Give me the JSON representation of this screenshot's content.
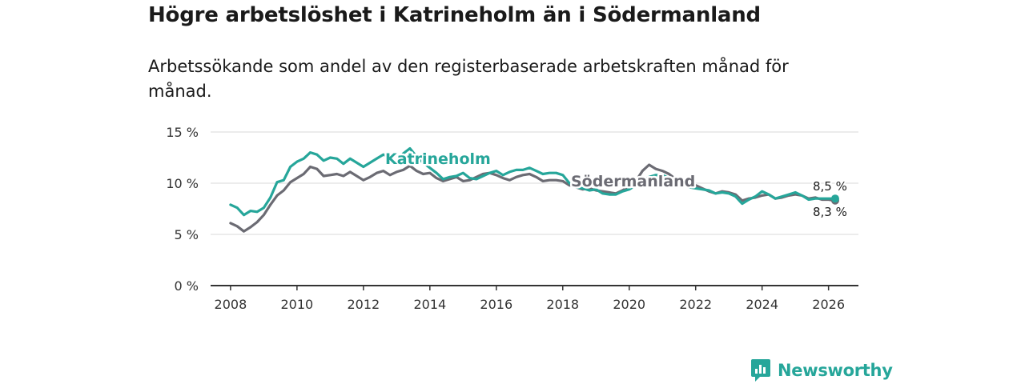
{
  "header": {
    "title": "Högre arbetslöshet i Katrineholm än i Södermanland",
    "subtitle": "Arbetssökande som andel av den registerbaserade arbetskraften månad för månad."
  },
  "brand": {
    "name": "Newsworthy",
    "icon": "newsworthy-logo-icon",
    "color": "#26a69a"
  },
  "chart_data": {
    "type": "line",
    "title": "Högre arbetslöshet i Katrineholm än i Södermanland",
    "subtitle": "Arbetssökande som andel av den registerbaserade arbetskraften månad för månad.",
    "xlabel": "",
    "ylabel": "",
    "xlim": [
      2007.4,
      2026.9
    ],
    "ylim": [
      0,
      15
    ],
    "x_ticks": [
      2008,
      2010,
      2012,
      2014,
      2016,
      2018,
      2020,
      2022,
      2024,
      2026
    ],
    "x_tick_labels": [
      "2008",
      "2010",
      "2012",
      "2014",
      "2016",
      "2018",
      "2020",
      "2022",
      "2024",
      "2026"
    ],
    "y_ticks": [
      0,
      5,
      10,
      15
    ],
    "y_tick_labels": [
      "0 %",
      "5 %",
      "10 %",
      "15 %"
    ],
    "grid": "horizontal",
    "series": [
      {
        "name": "Södermanland",
        "label": "Södermanland",
        "color": "#6b6b73",
        "end_label": "8,3 %",
        "points": [
          [
            2008.0,
            6.1
          ],
          [
            2008.2,
            5.8
          ],
          [
            2008.4,
            5.3
          ],
          [
            2008.6,
            5.7
          ],
          [
            2008.8,
            6.2
          ],
          [
            2009.0,
            6.9
          ],
          [
            2009.2,
            7.9
          ],
          [
            2009.4,
            8.8
          ],
          [
            2009.6,
            9.3
          ],
          [
            2009.8,
            10.1
          ],
          [
            2010.0,
            10.5
          ],
          [
            2010.2,
            10.9
          ],
          [
            2010.4,
            11.6
          ],
          [
            2010.6,
            11.4
          ],
          [
            2010.8,
            10.7
          ],
          [
            2011.0,
            10.8
          ],
          [
            2011.2,
            10.9
          ],
          [
            2011.4,
            10.7
          ],
          [
            2011.6,
            11.1
          ],
          [
            2011.8,
            10.7
          ],
          [
            2012.0,
            10.3
          ],
          [
            2012.2,
            10.6
          ],
          [
            2012.4,
            11.0
          ],
          [
            2012.6,
            11.2
          ],
          [
            2012.8,
            10.8
          ],
          [
            2013.0,
            11.1
          ],
          [
            2013.2,
            11.3
          ],
          [
            2013.4,
            11.7
          ],
          [
            2013.6,
            11.2
          ],
          [
            2013.8,
            10.9
          ],
          [
            2014.0,
            11.0
          ],
          [
            2014.2,
            10.5
          ],
          [
            2014.4,
            10.2
          ],
          [
            2014.6,
            10.4
          ],
          [
            2014.8,
            10.6
          ],
          [
            2015.0,
            10.2
          ],
          [
            2015.2,
            10.3
          ],
          [
            2015.4,
            10.6
          ],
          [
            2015.6,
            10.9
          ],
          [
            2015.8,
            11.0
          ],
          [
            2016.0,
            10.8
          ],
          [
            2016.2,
            10.5
          ],
          [
            2016.4,
            10.3
          ],
          [
            2016.6,
            10.6
          ],
          [
            2016.8,
            10.8
          ],
          [
            2017.0,
            10.9
          ],
          [
            2017.2,
            10.6
          ],
          [
            2017.4,
            10.2
          ],
          [
            2017.6,
            10.3
          ],
          [
            2017.8,
            10.3
          ],
          [
            2018.0,
            10.2
          ],
          [
            2018.2,
            9.8
          ],
          [
            2018.4,
            9.6
          ],
          [
            2018.6,
            9.4
          ],
          [
            2018.8,
            9.5
          ],
          [
            2019.0,
            9.3
          ],
          [
            2019.2,
            9.2
          ],
          [
            2019.4,
            9.1
          ],
          [
            2019.6,
            9.0
          ],
          [
            2019.8,
            9.3
          ],
          [
            2020.0,
            9.7
          ],
          [
            2020.2,
            10.2
          ],
          [
            2020.4,
            11.2
          ],
          [
            2020.6,
            11.8
          ],
          [
            2020.8,
            11.4
          ],
          [
            2021.0,
            11.2
          ],
          [
            2021.2,
            10.9
          ],
          [
            2021.4,
            10.4
          ],
          [
            2021.6,
            10.1
          ],
          [
            2021.8,
            9.9
          ],
          [
            2022.0,
            9.8
          ],
          [
            2022.2,
            9.5
          ],
          [
            2022.4,
            9.2
          ],
          [
            2022.6,
            9.0
          ],
          [
            2022.8,
            9.2
          ],
          [
            2023.0,
            9.1
          ],
          [
            2023.2,
            8.9
          ],
          [
            2023.4,
            8.3
          ],
          [
            2023.6,
            8.5
          ],
          [
            2023.8,
            8.6
          ],
          [
            2024.0,
            8.8
          ],
          [
            2024.2,
            8.9
          ],
          [
            2024.4,
            8.5
          ],
          [
            2024.6,
            8.6
          ],
          [
            2024.8,
            8.8
          ],
          [
            2025.0,
            8.9
          ],
          [
            2025.2,
            8.8
          ],
          [
            2025.4,
            8.5
          ],
          [
            2025.6,
            8.6
          ],
          [
            2025.8,
            8.4
          ],
          [
            2026.0,
            8.4
          ],
          [
            2026.2,
            8.3
          ]
        ]
      },
      {
        "name": "Katrineholm",
        "label": "Katrineholm",
        "color": "#26a69a",
        "end_label": "8,5 %",
        "points": [
          [
            2008.0,
            7.9
          ],
          [
            2008.2,
            7.6
          ],
          [
            2008.4,
            6.9
          ],
          [
            2008.6,
            7.3
          ],
          [
            2008.8,
            7.2
          ],
          [
            2009.0,
            7.6
          ],
          [
            2009.2,
            8.6
          ],
          [
            2009.4,
            10.1
          ],
          [
            2009.6,
            10.3
          ],
          [
            2009.8,
            11.6
          ],
          [
            2010.0,
            12.1
          ],
          [
            2010.2,
            12.4
          ],
          [
            2010.4,
            13.0
          ],
          [
            2010.6,
            12.8
          ],
          [
            2010.8,
            12.2
          ],
          [
            2011.0,
            12.5
          ],
          [
            2011.2,
            12.4
          ],
          [
            2011.4,
            11.9
          ],
          [
            2011.6,
            12.4
          ],
          [
            2011.8,
            12.0
          ],
          [
            2012.0,
            11.6
          ],
          [
            2012.2,
            12.0
          ],
          [
            2012.4,
            12.4
          ],
          [
            2012.6,
            12.8
          ],
          [
            2012.8,
            12.5
          ],
          [
            2013.0,
            12.1
          ],
          [
            2013.2,
            12.9
          ],
          [
            2013.4,
            13.4
          ],
          [
            2013.6,
            12.6
          ],
          [
            2013.8,
            12.0
          ],
          [
            2014.0,
            11.5
          ],
          [
            2014.2,
            11.0
          ],
          [
            2014.4,
            10.4
          ],
          [
            2014.6,
            10.6
          ],
          [
            2014.8,
            10.7
          ],
          [
            2015.0,
            11.0
          ],
          [
            2015.2,
            10.5
          ],
          [
            2015.4,
            10.4
          ],
          [
            2015.6,
            10.7
          ],
          [
            2015.8,
            11.0
          ],
          [
            2016.0,
            11.2
          ],
          [
            2016.2,
            10.8
          ],
          [
            2016.4,
            11.1
          ],
          [
            2016.6,
            11.3
          ],
          [
            2016.8,
            11.3
          ],
          [
            2017.0,
            11.5
          ],
          [
            2017.2,
            11.2
          ],
          [
            2017.4,
            10.9
          ],
          [
            2017.6,
            11.0
          ],
          [
            2017.8,
            11.0
          ],
          [
            2018.0,
            10.8
          ],
          [
            2018.2,
            10.0
          ],
          [
            2018.4,
            9.6
          ],
          [
            2018.6,
            9.5
          ],
          [
            2018.8,
            9.3
          ],
          [
            2019.0,
            9.4
          ],
          [
            2019.2,
            9.0
          ],
          [
            2019.4,
            8.9
          ],
          [
            2019.6,
            8.9
          ],
          [
            2019.8,
            9.2
          ],
          [
            2020.0,
            9.4
          ],
          [
            2020.2,
            9.8
          ],
          [
            2020.4,
            10.2
          ],
          [
            2020.6,
            10.6
          ],
          [
            2020.8,
            10.8
          ],
          [
            2021.0,
            10.8
          ],
          [
            2021.2,
            10.5
          ],
          [
            2021.4,
            10.2
          ],
          [
            2021.6,
            9.9
          ],
          [
            2021.8,
            9.6
          ],
          [
            2022.0,
            9.5
          ],
          [
            2022.2,
            9.4
          ],
          [
            2022.4,
            9.3
          ],
          [
            2022.6,
            9.0
          ],
          [
            2022.8,
            9.1
          ],
          [
            2023.0,
            9.0
          ],
          [
            2023.2,
            8.7
          ],
          [
            2023.4,
            8.0
          ],
          [
            2023.6,
            8.4
          ],
          [
            2023.8,
            8.7
          ],
          [
            2024.0,
            9.2
          ],
          [
            2024.2,
            8.9
          ],
          [
            2024.4,
            8.5
          ],
          [
            2024.6,
            8.7
          ],
          [
            2024.8,
            8.9
          ],
          [
            2025.0,
            9.1
          ],
          [
            2025.2,
            8.8
          ],
          [
            2025.4,
            8.4
          ],
          [
            2025.6,
            8.5
          ],
          [
            2025.8,
            8.5
          ],
          [
            2026.0,
            8.5
          ],
          [
            2026.2,
            8.5
          ]
        ]
      }
    ]
  }
}
